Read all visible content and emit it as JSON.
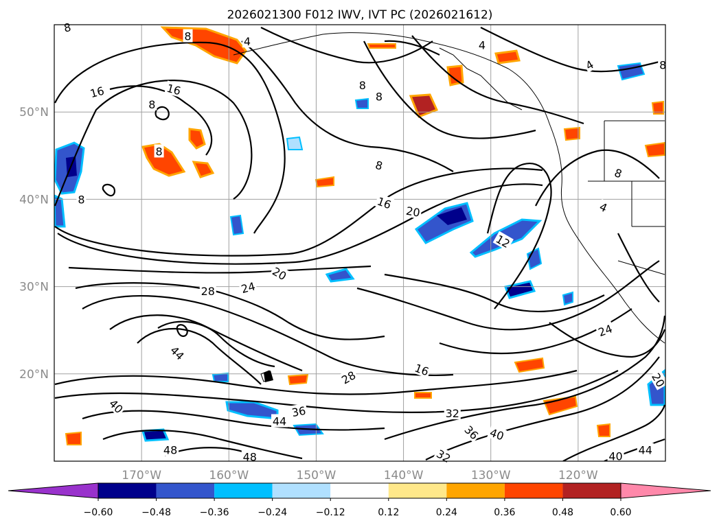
{
  "chart_data": {
    "type": "contour-map",
    "title": "2026021300 F012 IWV, IVT PC (2026021612)",
    "projection": "lat-lon",
    "lon_range": [
      -180,
      -110
    ],
    "lat_range": [
      10,
      60
    ],
    "lat_ticks": [
      {
        "value": 50,
        "label": "50°N"
      },
      {
        "value": 40,
        "label": "40°N"
      },
      {
        "value": 30,
        "label": "30°N"
      },
      {
        "value": 20,
        "label": "20°N"
      }
    ],
    "lon_ticks": [
      {
        "value": -170,
        "label": "170°W"
      },
      {
        "value": -160,
        "label": "160°W"
      },
      {
        "value": -150,
        "label": "150°W"
      },
      {
        "value": -140,
        "label": "140°W"
      },
      {
        "value": -130,
        "label": "130°W"
      },
      {
        "value": -120,
        "label": "120°W"
      }
    ],
    "grid": true,
    "colorbar": {
      "orientation": "horizontal",
      "extend": "both",
      "levels": [
        -0.72,
        -0.6,
        -0.48,
        -0.36,
        -0.24,
        -0.12,
        0.12,
        0.24,
        0.36,
        0.48,
        0.6,
        0.72
      ],
      "colors": [
        "#9932cc",
        "#00008b",
        "#3355cc",
        "#00bfff",
        "#b0e0ff",
        "#ffffff",
        "#ffe88a",
        "#ffa500",
        "#ff4500",
        "#b22222",
        "#ff88aa"
      ],
      "tick_labels": [
        "−0.60",
        "−0.48",
        "−0.36",
        "−0.24",
        "−0.12",
        "0.12",
        "0.24",
        "0.36",
        "0.48",
        "0.60"
      ]
    },
    "contour_labels": [
      {
        "text": "8",
        "lon": -178.5,
        "lat": 59.7,
        "rot": -10
      },
      {
        "text": "8",
        "lon": -164.7,
        "lat": 58.7,
        "rot": 0
      },
      {
        "text": "4",
        "lon": -157.9,
        "lat": 58.1,
        "rot": 0
      },
      {
        "text": "16",
        "lon": -175.1,
        "lat": 52.3,
        "rot": -15
      },
      {
        "text": "16",
        "lon": -166.3,
        "lat": 52.6,
        "rot": 15
      },
      {
        "text": "8",
        "lon": -168.8,
        "lat": 50.9,
        "rot": 0
      },
      {
        "text": "8",
        "lon": -168.0,
        "lat": 45.5,
        "rot": 0
      },
      {
        "text": "8",
        "lon": -176.9,
        "lat": 40.0,
        "rot": 0
      },
      {
        "text": "8",
        "lon": -144.7,
        "lat": 53.1,
        "rot": 0
      },
      {
        "text": "4",
        "lon": -131.0,
        "lat": 57.7,
        "rot": 0
      },
      {
        "text": "4",
        "lon": -118.7,
        "lat": 55.4,
        "rot": -30
      },
      {
        "text": "8",
        "lon": -142.8,
        "lat": 51.8,
        "rot": 0
      },
      {
        "text": "8",
        "lon": -110.3,
        "lat": 55.4,
        "rot": 0
      },
      {
        "text": "8",
        "lon": -142.8,
        "lat": 43.9,
        "rot": 15
      },
      {
        "text": "16",
        "lon": -142.2,
        "lat": 39.6,
        "rot": 20
      },
      {
        "text": "20",
        "lon": -138.9,
        "lat": 38.6,
        "rot": 10
      },
      {
        "text": "12",
        "lon": -128.6,
        "lat": 35.2,
        "rot": 30
      },
      {
        "text": "4",
        "lon": -117.1,
        "lat": 39.1,
        "rot": 25
      },
      {
        "text": "8",
        "lon": -115.4,
        "lat": 43.0,
        "rot": 20
      },
      {
        "text": "20",
        "lon": -154.2,
        "lat": 31.5,
        "rot": 30
      },
      {
        "text": "24",
        "lon": -157.8,
        "lat": 29.9,
        "rot": -15
      },
      {
        "text": "28",
        "lon": -162.4,
        "lat": 29.5,
        "rot": 0
      },
      {
        "text": "24",
        "lon": -116.9,
        "lat": 25.0,
        "rot": -20
      },
      {
        "text": "16",
        "lon": -137.9,
        "lat": 20.5,
        "rot": 20
      },
      {
        "text": "28",
        "lon": -146.3,
        "lat": 19.6,
        "rot": -30
      },
      {
        "text": "44",
        "lon": -165.9,
        "lat": 22.4,
        "rot": 45
      },
      {
        "text": "40",
        "lon": -172.9,
        "lat": 16.3,
        "rot": 45
      },
      {
        "text": "36",
        "lon": -152.0,
        "lat": 15.7,
        "rot": -10
      },
      {
        "text": "44",
        "lon": -154.2,
        "lat": 14.6,
        "rot": 0
      },
      {
        "text": "32",
        "lon": -134.4,
        "lat": 15.5,
        "rot": 0
      },
      {
        "text": "36",
        "lon": -132.2,
        "lat": 13.3,
        "rot": 45
      },
      {
        "text": "40",
        "lon": -129.3,
        "lat": 13.1,
        "rot": 20
      },
      {
        "text": "20",
        "lon": -110.8,
        "lat": 19.3,
        "rot": 60
      },
      {
        "text": "48",
        "lon": -166.7,
        "lat": 11.3,
        "rot": 0
      },
      {
        "text": "48",
        "lon": -157.6,
        "lat": 10.5,
        "rot": 0
      },
      {
        "text": "32",
        "lon": -135.4,
        "lat": 10.6,
        "rot": 30
      },
      {
        "text": "40",
        "lon": -115.7,
        "lat": 10.6,
        "rot": 0
      },
      {
        "text": "44",
        "lon": -112.3,
        "lat": 11.3,
        "rot": 0
      }
    ]
  }
}
